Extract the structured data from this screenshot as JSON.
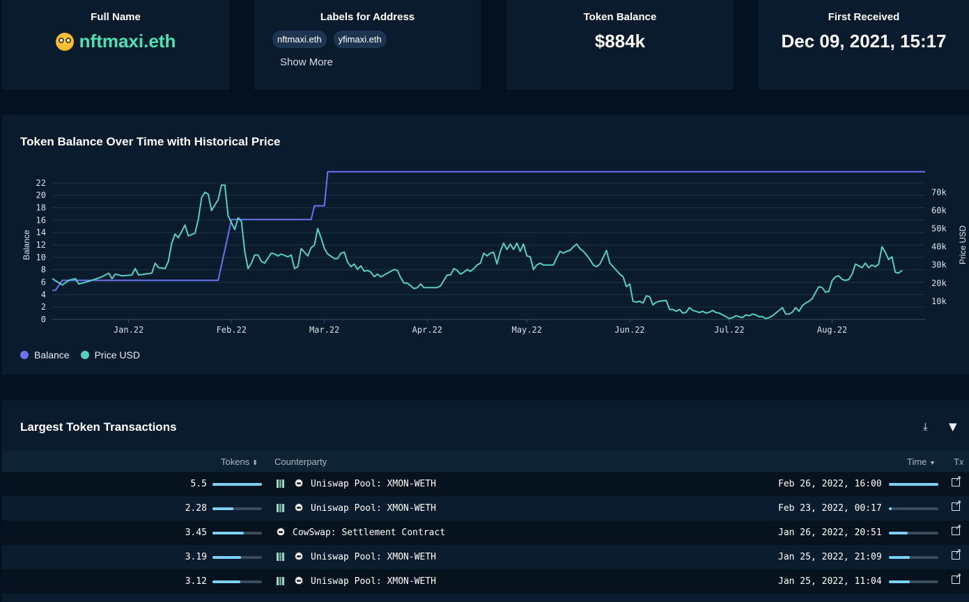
{
  "stats": {
    "full_name": {
      "label": "Full Name",
      "value": "nftmaxi.eth",
      "icon": "nerd-face-icon"
    },
    "labels": {
      "label": "Labels for Address",
      "chips": [
        "nftmaxi.eth",
        "yfimaxi.eth"
      ],
      "show_more": "Show More"
    },
    "token_balance": {
      "label": "Token Balance",
      "value": "$884k"
    },
    "first_received": {
      "label": "First Received",
      "value": "Dec 09, 2021, 15:17"
    }
  },
  "chart_panel": {
    "title": "Token Balance Over Time with Historical Price",
    "legend": [
      "Balance",
      "Price USD"
    ]
  },
  "colors": {
    "balance": "#6b74f0",
    "price": "#55d1c2",
    "accent_green": "#4ee2b3",
    "bar": "#7fd0f7"
  },
  "chart_data": {
    "type": "line",
    "xlabel": "",
    "ylabel": "Balance",
    "y2label": "Price USD",
    "x_ticks": [
      "Jan.22",
      "Feb.22",
      "Mar.22",
      "Apr.22",
      "May.22",
      "Jun.22",
      "Jul.22",
      "Aug.22"
    ],
    "y_ticks": [
      "0",
      "2",
      "4",
      "6",
      "8",
      "10",
      "12",
      "14",
      "16",
      "18",
      "20",
      "22"
    ],
    "y2_ticks": [
      "10k",
      "20k",
      "30k",
      "40k",
      "50k",
      "60k",
      "70k"
    ],
    "ylim": [
      0,
      24
    ],
    "y2lim": [
      0,
      82000
    ],
    "xlim": [
      "2021-12-09",
      "2022-08-29"
    ],
    "series": [
      {
        "name": "Balance",
        "axis": "left",
        "points": [
          [
            "2021-12-09",
            4.7
          ],
          [
            "2021-12-10",
            4.7
          ],
          [
            "2021-12-12",
            6.3
          ],
          [
            "2022-01-28",
            6.3
          ],
          [
            "2022-02-01",
            16.1
          ],
          [
            "2022-02-25",
            16.1
          ],
          [
            "2022-02-26",
            18.3
          ],
          [
            "2022-03-01",
            18.3
          ],
          [
            "2022-03-02",
            23.8
          ],
          [
            "2022-08-29",
            23.8
          ]
        ]
      },
      {
        "name": "Price USD",
        "axis": "right",
        "points": [
          [
            "2021-12-09",
            22500
          ],
          [
            "2021-12-12",
            19000
          ],
          [
            "2021-12-14",
            21500
          ],
          [
            "2021-12-16",
            22500
          ],
          [
            "2021-12-17",
            19500
          ],
          [
            "2021-12-20",
            21000
          ],
          [
            "2021-12-24",
            23500
          ],
          [
            "2021-12-26",
            25500
          ],
          [
            "2021-12-27",
            22500
          ],
          [
            "2021-12-28",
            25000
          ],
          [
            "2021-12-30",
            24000
          ],
          [
            "2022-01-02",
            24500
          ],
          [
            "2022-01-03",
            28000
          ],
          [
            "2022-01-04",
            24500
          ],
          [
            "2022-01-06",
            25000
          ],
          [
            "2022-01-08",
            25500
          ],
          [
            "2022-01-09",
            31000
          ],
          [
            "2022-01-10",
            28500
          ],
          [
            "2022-01-12",
            28000
          ],
          [
            "2022-01-13",
            32000
          ],
          [
            "2022-01-14",
            42000
          ],
          [
            "2022-01-15",
            47000
          ],
          [
            "2022-01-16",
            45000
          ],
          [
            "2022-01-18",
            52000
          ],
          [
            "2022-01-19",
            46000
          ],
          [
            "2022-01-21",
            47500
          ],
          [
            "2022-01-22",
            55000
          ],
          [
            "2022-01-23",
            67000
          ],
          [
            "2022-01-24",
            70000
          ],
          [
            "2022-01-25",
            69000
          ],
          [
            "2022-01-26",
            60000
          ],
          [
            "2022-01-28",
            66000
          ],
          [
            "2022-01-29",
            74000
          ],
          [
            "2022-01-30",
            74000
          ],
          [
            "2022-01-31",
            57000
          ],
          [
            "2022-02-02",
            49500
          ],
          [
            "2022-02-03",
            56000
          ],
          [
            "2022-02-04",
            54000
          ],
          [
            "2022-02-05",
            37500
          ],
          [
            "2022-02-06",
            28000
          ],
          [
            "2022-02-07",
            31000
          ],
          [
            "2022-02-08",
            35500
          ],
          [
            "2022-02-09",
            35500
          ],
          [
            "2022-02-10",
            32000
          ],
          [
            "2022-02-11",
            31000
          ],
          [
            "2022-02-13",
            36500
          ],
          [
            "2022-02-14",
            36000
          ],
          [
            "2022-02-15",
            35000
          ],
          [
            "2022-02-16",
            36000
          ],
          [
            "2022-02-18",
            34500
          ],
          [
            "2022-02-19",
            35500
          ],
          [
            "2022-02-20",
            28000
          ],
          [
            "2022-02-21",
            29000
          ],
          [
            "2022-02-22",
            39000
          ],
          [
            "2022-02-23",
            37000
          ],
          [
            "2022-02-24",
            35000
          ],
          [
            "2022-02-25",
            39500
          ],
          [
            "2022-02-26",
            41000
          ],
          [
            "2022-02-27",
            50000
          ],
          [
            "2022-02-28",
            45000
          ],
          [
            "2022-03-01",
            39000
          ],
          [
            "2022-03-02",
            36000
          ],
          [
            "2022-03-04",
            33500
          ],
          [
            "2022-03-05",
            33500
          ],
          [
            "2022-03-06",
            36500
          ],
          [
            "2022-03-07",
            37000
          ],
          [
            "2022-03-08",
            31500
          ],
          [
            "2022-03-09",
            29000
          ],
          [
            "2022-03-10",
            30500
          ],
          [
            "2022-03-11",
            27500
          ],
          [
            "2022-03-12",
            29500
          ],
          [
            "2022-03-13",
            26500
          ],
          [
            "2022-03-14",
            27000
          ],
          [
            "2022-03-15",
            26000
          ],
          [
            "2022-03-16",
            23500
          ],
          [
            "2022-03-17",
            25000
          ],
          [
            "2022-03-18",
            23500
          ],
          [
            "2022-03-20",
            25500
          ],
          [
            "2022-03-22",
            27500
          ],
          [
            "2022-03-23",
            27000
          ],
          [
            "2022-03-24",
            23000
          ],
          [
            "2022-03-25",
            20000
          ],
          [
            "2022-03-26",
            20000
          ],
          [
            "2022-03-28",
            17000
          ],
          [
            "2022-03-29",
            17500
          ],
          [
            "2022-03-30",
            19500
          ],
          [
            "2022-03-31",
            17500
          ],
          [
            "2022-04-02",
            17500
          ],
          [
            "2022-04-04",
            17500
          ],
          [
            "2022-04-05",
            18500
          ],
          [
            "2022-04-06",
            21500
          ],
          [
            "2022-04-07",
            24500
          ],
          [
            "2022-04-08",
            24500
          ],
          [
            "2022-04-09",
            28000
          ],
          [
            "2022-04-10",
            27000
          ],
          [
            "2022-04-11",
            25000
          ],
          [
            "2022-04-12",
            26000
          ],
          [
            "2022-04-13",
            27500
          ],
          [
            "2022-04-14",
            26500
          ],
          [
            "2022-04-15",
            28000
          ],
          [
            "2022-04-16",
            30000
          ],
          [
            "2022-04-17",
            31000
          ],
          [
            "2022-04-18",
            36500
          ],
          [
            "2022-04-19",
            35000
          ],
          [
            "2022-04-20",
            36500
          ],
          [
            "2022-04-21",
            37000
          ],
          [
            "2022-04-22",
            30500
          ],
          [
            "2022-04-23",
            37500
          ],
          [
            "2022-04-24",
            42000
          ],
          [
            "2022-04-25",
            38500
          ],
          [
            "2022-04-26",
            41500
          ],
          [
            "2022-04-27",
            38500
          ],
          [
            "2022-04-28",
            42000
          ],
          [
            "2022-04-29",
            37500
          ],
          [
            "2022-04-30",
            41500
          ],
          [
            "2022-05-01",
            35000
          ],
          [
            "2022-05-02",
            34500
          ],
          [
            "2022-05-03",
            27500
          ],
          [
            "2022-05-04",
            30000
          ],
          [
            "2022-05-05",
            31000
          ],
          [
            "2022-05-06",
            30000
          ],
          [
            "2022-05-08",
            30000
          ],
          [
            "2022-05-09",
            30000
          ],
          [
            "2022-05-10",
            34000
          ],
          [
            "2022-05-11",
            37500
          ],
          [
            "2022-05-12",
            36500
          ],
          [
            "2022-05-13",
            37500
          ],
          [
            "2022-05-14",
            38000
          ],
          [
            "2022-05-15",
            40000
          ],
          [
            "2022-05-16",
            41500
          ],
          [
            "2022-05-17",
            39000
          ],
          [
            "2022-05-18",
            37500
          ],
          [
            "2022-05-19",
            35500
          ],
          [
            "2022-05-20",
            33000
          ],
          [
            "2022-05-21",
            30000
          ],
          [
            "2022-05-22",
            29000
          ],
          [
            "2022-05-23",
            30500
          ],
          [
            "2022-05-25",
            38000
          ],
          [
            "2022-05-26",
            31000
          ],
          [
            "2022-05-28",
            27000
          ],
          [
            "2022-05-29",
            25000
          ],
          [
            "2022-05-30",
            23500
          ],
          [
            "2022-05-31",
            18000
          ],
          [
            "2022-06-01",
            19500
          ],
          [
            "2022-06-02",
            10000
          ],
          [
            "2022-06-03",
            9500
          ],
          [
            "2022-06-04",
            10000
          ],
          [
            "2022-06-05",
            9000
          ],
          [
            "2022-06-06",
            13000
          ],
          [
            "2022-06-07",
            12500
          ],
          [
            "2022-06-08",
            8000
          ],
          [
            "2022-06-09",
            9500
          ],
          [
            "2022-06-10",
            10000
          ],
          [
            "2022-06-12",
            10500
          ],
          [
            "2022-06-13",
            5500
          ],
          [
            "2022-06-14",
            5500
          ],
          [
            "2022-06-15",
            4500
          ],
          [
            "2022-06-16",
            5500
          ],
          [
            "2022-06-17",
            3500
          ],
          [
            "2022-06-18",
            4000
          ],
          [
            "2022-06-19",
            6500
          ],
          [
            "2022-06-20",
            5000
          ],
          [
            "2022-06-21",
            4500
          ],
          [
            "2022-06-22",
            3800
          ],
          [
            "2022-06-23",
            4500
          ],
          [
            "2022-06-24",
            3500
          ],
          [
            "2022-06-25",
            4000
          ],
          [
            "2022-06-26",
            5000
          ],
          [
            "2022-06-27",
            3800
          ],
          [
            "2022-06-28",
            3500
          ],
          [
            "2022-06-29",
            2500
          ],
          [
            "2022-06-30",
            1500
          ],
          [
            "2022-07-01",
            500
          ],
          [
            "2022-07-02",
            1000
          ],
          [
            "2022-07-03",
            2000
          ],
          [
            "2022-07-04",
            1500
          ],
          [
            "2022-07-05",
            1000
          ],
          [
            "2022-07-06",
            2500
          ],
          [
            "2022-07-07",
            2000
          ],
          [
            "2022-07-08",
            3000
          ],
          [
            "2022-07-09",
            2500
          ],
          [
            "2022-07-10",
            1500
          ],
          [
            "2022-07-11",
            1500
          ],
          [
            "2022-07-12",
            500
          ],
          [
            "2022-07-13",
            1000
          ],
          [
            "2022-07-14",
            2000
          ],
          [
            "2022-07-15",
            3500
          ],
          [
            "2022-07-16",
            5000
          ],
          [
            "2022-07-17",
            6500
          ],
          [
            "2022-07-18",
            3000
          ],
          [
            "2022-07-19",
            3000
          ],
          [
            "2022-07-20",
            4000
          ],
          [
            "2022-07-21",
            6500
          ],
          [
            "2022-07-22",
            4500
          ],
          [
            "2022-07-23",
            7500
          ],
          [
            "2022-07-24",
            9000
          ],
          [
            "2022-07-25",
            10000
          ],
          [
            "2022-07-26",
            11500
          ],
          [
            "2022-07-27",
            15000
          ],
          [
            "2022-07-28",
            18000
          ],
          [
            "2022-07-29",
            17500
          ],
          [
            "2022-07-30",
            15000
          ],
          [
            "2022-07-31",
            15500
          ],
          [
            "2022-08-01",
            21500
          ],
          [
            "2022-08-02",
            23500
          ],
          [
            "2022-08-03",
            24000
          ],
          [
            "2022-08-04",
            22000
          ],
          [
            "2022-08-05",
            21500
          ],
          [
            "2022-08-06",
            22000
          ],
          [
            "2022-08-07",
            25000
          ],
          [
            "2022-08-08",
            30500
          ],
          [
            "2022-08-09",
            29500
          ],
          [
            "2022-08-10",
            28500
          ],
          [
            "2022-08-11",
            31000
          ],
          [
            "2022-08-12",
            28500
          ],
          [
            "2022-08-13",
            30000
          ],
          [
            "2022-08-14",
            29000
          ],
          [
            "2022-08-15",
            30500
          ],
          [
            "2022-08-16",
            40000
          ],
          [
            "2022-08-17",
            37000
          ],
          [
            "2022-08-18",
            33000
          ],
          [
            "2022-08-19",
            34500
          ],
          [
            "2022-08-20",
            26000
          ],
          [
            "2022-08-21",
            25500
          ],
          [
            "2022-08-22",
            27000
          ]
        ]
      }
    ]
  },
  "table": {
    "title": "Largest Token Transactions",
    "columns": {
      "tokens": "Tokens",
      "counterparty": "Counterparty",
      "time": "Time",
      "tx": "Tx"
    },
    "rows": [
      {
        "tokens": "5.5",
        "token_share": 1.0,
        "counterparty": "Uniswap Pool: XMON-WETH",
        "time": "Feb 26, 2022, 16:00",
        "time_share": 1.0,
        "pool_icon": true
      },
      {
        "tokens": "2.28",
        "token_share": 0.42,
        "counterparty": "Uniswap Pool: XMON-WETH",
        "time": "Feb 23, 2022, 00:17",
        "time_share": 0.05,
        "pool_icon": true
      },
      {
        "tokens": "3.45",
        "token_share": 0.63,
        "counterparty": "CowSwap: Settlement Contract",
        "time": "Jan 26, 2022, 20:51",
        "time_share": 0.38,
        "pool_icon": false
      },
      {
        "tokens": "3.19",
        "token_share": 0.58,
        "counterparty": "Uniswap Pool: XMON-WETH",
        "time": "Jan 25, 2022, 21:09",
        "time_share": 0.42,
        "pool_icon": true
      },
      {
        "tokens": "3.12",
        "token_share": 0.56,
        "counterparty": "Uniswap Pool: XMON-WETH",
        "time": "Jan 25, 2022, 11:04",
        "time_share": 0.42,
        "pool_icon": true
      }
    ],
    "download_icon": "download-icon",
    "filter_icon": "filter-icon"
  }
}
